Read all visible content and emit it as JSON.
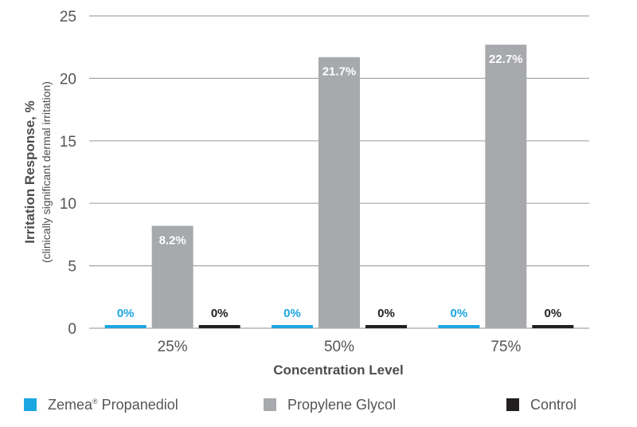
{
  "chart_data": {
    "type": "bar",
    "xlabel": "Concentration Level",
    "ylabel": "Irritation Response, %",
    "ylabel_sub": "(clinically significant dermal irritation)",
    "categories": [
      "25%",
      "50%",
      "75%"
    ],
    "ylim": [
      0,
      25
    ],
    "yticks": [
      "0",
      "5",
      "10",
      "15",
      "20",
      "25"
    ],
    "grid": true,
    "legend_position": "bottom",
    "series": [
      {
        "name_prefix": "Zemea",
        "name_mark": "®",
        "name_suffix": " Propanediol",
        "values": [
          0,
          0,
          0
        ],
        "labels": [
          "0%",
          "0%",
          "0%"
        ],
        "color": "#1aa6e0",
        "label_color": "#1aa6e0"
      },
      {
        "name": "Propylene Glycol",
        "values": [
          8.2,
          21.7,
          22.7
        ],
        "labels": [
          "8.2%",
          "21.7%",
          "22.7%"
        ],
        "color": "#a7a9ac",
        "label_color": "#ffffff"
      },
      {
        "name": "Control",
        "values": [
          0,
          0,
          0
        ],
        "labels": [
          "0%",
          "0%",
          "0%"
        ],
        "color": "#231f20",
        "label_color": "#231f20"
      }
    ]
  }
}
